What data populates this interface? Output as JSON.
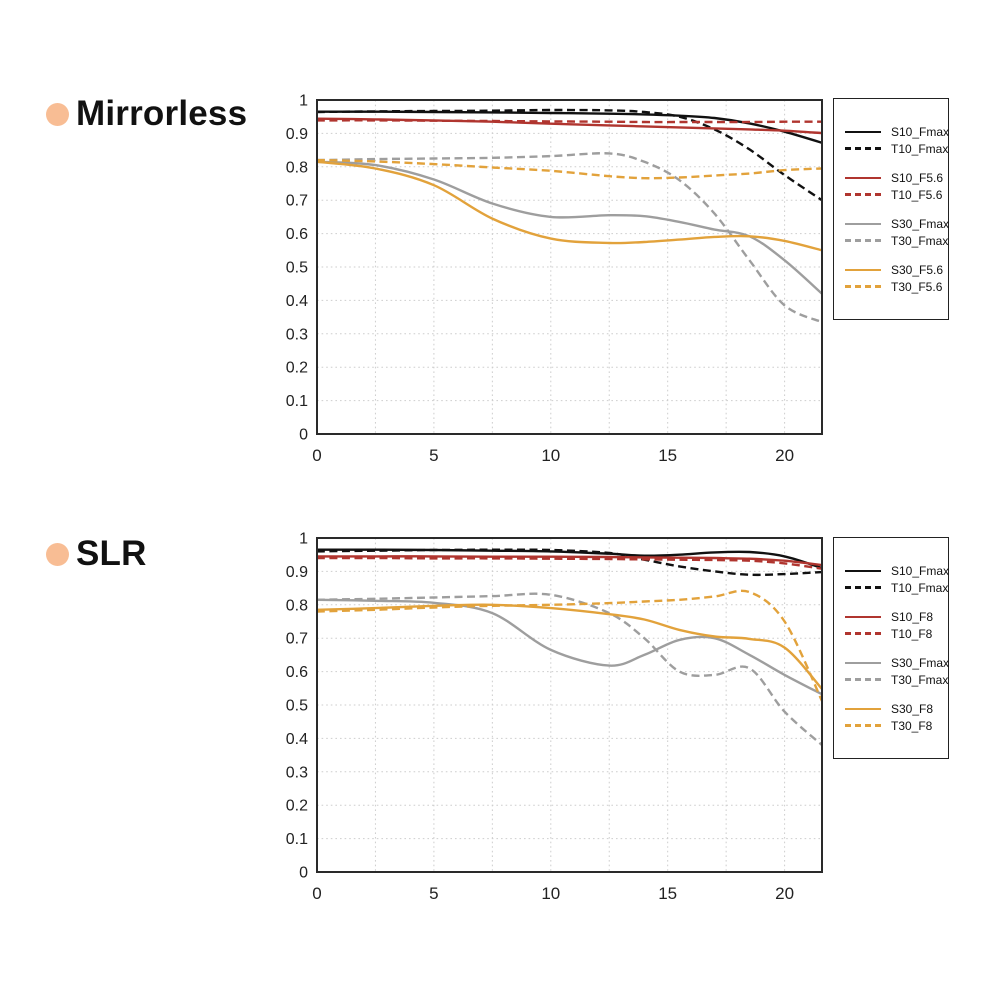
{
  "accent": {
    "bullet_color": "#f8bd94"
  },
  "axis_color": "#2a2a2a",
  "grid_color": "#cdcdcd",
  "chart_data": [
    {
      "type": "line",
      "title": "Mirrorless",
      "xlabel": "",
      "ylabel": "",
      "xlim": [
        0,
        21.6
      ],
      "ylim": [
        0,
        1
      ],
      "xticks": [
        0,
        5,
        10,
        15,
        20
      ],
      "xticklabels": [
        "0",
        "5",
        "10",
        "15",
        "20"
      ],
      "yticks": [
        1,
        0.9,
        0.8,
        0.7,
        0.6,
        0.5,
        0.4,
        0.3,
        0.2,
        0.1,
        0
      ],
      "yticklabels": [
        "1",
        "0.9",
        "0.8",
        "0.7",
        "0.6",
        "0.5",
        "0.4",
        "0.3",
        "0.2",
        "0.1",
        "0"
      ],
      "xgrid": [
        2.5,
        5,
        7.5,
        10,
        12.5,
        15,
        17.5,
        20
      ],
      "ygrid": [
        0.1,
        0.2,
        0.3,
        0.4,
        0.5,
        0.6,
        0.7,
        0.8,
        0.9
      ],
      "grid": true,
      "legend_position": "right",
      "x": [
        0,
        2.5,
        5,
        7.5,
        10,
        12.5,
        14,
        15.5,
        17,
        18.5,
        20,
        21.6
      ],
      "series": [
        {
          "name": "S10_Fmax",
          "color": "#111111",
          "dash": "solid",
          "values": [
            0.965,
            0.965,
            0.964,
            0.963,
            0.961,
            0.959,
            0.957,
            0.953,
            0.946,
            0.93,
            0.905,
            0.872
          ]
        },
        {
          "name": "T10_Fmax",
          "color": "#111111",
          "dash": "dashed",
          "values": [
            0.964,
            0.966,
            0.967,
            0.968,
            0.97,
            0.969,
            0.964,
            0.95,
            0.912,
            0.852,
            0.775,
            0.7
          ]
        },
        {
          "name": "S10_F5.6",
          "color": "#b0352f",
          "dash": "solid",
          "values": [
            0.944,
            0.942,
            0.939,
            0.935,
            0.929,
            0.924,
            0.921,
            0.918,
            0.915,
            0.912,
            0.908,
            0.901
          ]
        },
        {
          "name": "T10_F5.6",
          "color": "#b0352f",
          "dash": "dashed",
          "values": [
            0.939,
            0.939,
            0.938,
            0.937,
            0.936,
            0.935,
            0.934,
            0.934,
            0.934,
            0.934,
            0.935,
            0.935
          ]
        },
        {
          "name": "S30_Fmax",
          "color": "#9e9e9e",
          "dash": "solid",
          "values": [
            0.815,
            0.805,
            0.762,
            0.69,
            0.65,
            0.655,
            0.652,
            0.635,
            0.612,
            0.592,
            0.52,
            0.42
          ]
        },
        {
          "name": "T30_Fmax",
          "color": "#9e9e9e",
          "dash": "dashed",
          "values": [
            0.82,
            0.823,
            0.825,
            0.827,
            0.832,
            0.84,
            0.815,
            0.76,
            0.66,
            0.52,
            0.385,
            0.335
          ]
        },
        {
          "name": "S30_F5.6",
          "color": "#e2a23b",
          "dash": "solid",
          "values": [
            0.815,
            0.795,
            0.745,
            0.645,
            0.585,
            0.572,
            0.575,
            0.582,
            0.59,
            0.592,
            0.578,
            0.55
          ]
        },
        {
          "name": "T30_F5.6",
          "color": "#e2a23b",
          "dash": "dashed",
          "values": [
            0.82,
            0.816,
            0.808,
            0.798,
            0.788,
            0.772,
            0.766,
            0.768,
            0.774,
            0.78,
            0.79,
            0.795
          ]
        }
      ]
    },
    {
      "type": "line",
      "title": "SLR",
      "xlabel": "",
      "ylabel": "",
      "xlim": [
        0,
        21.6
      ],
      "ylim": [
        0,
        1
      ],
      "xticks": [
        0,
        5,
        10,
        15,
        20
      ],
      "xticklabels": [
        "0",
        "5",
        "10",
        "15",
        "20"
      ],
      "yticks": [
        1,
        0.9,
        0.8,
        0.7,
        0.6,
        0.5,
        0.4,
        0.3,
        0.2,
        0.1,
        0
      ],
      "yticklabels": [
        "1",
        "0.9",
        "0.8",
        "0.7",
        "0.6",
        "0.5",
        "0.4",
        "0.3",
        "0.2",
        "0.1",
        "0"
      ],
      "xgrid": [
        2.5,
        5,
        7.5,
        10,
        12.5,
        15,
        17.5,
        20
      ],
      "ygrid": [
        0.1,
        0.2,
        0.3,
        0.4,
        0.5,
        0.6,
        0.7,
        0.8,
        0.9
      ],
      "grid": true,
      "legend_position": "right",
      "x": [
        0,
        2.5,
        5,
        7.5,
        10,
        12.5,
        14,
        15.5,
        17,
        18.5,
        20,
        21.6
      ],
      "series": [
        {
          "name": "S10_Fmax",
          "color": "#111111",
          "dash": "solid",
          "values": [
            0.965,
            0.965,
            0.964,
            0.962,
            0.96,
            0.953,
            0.947,
            0.95,
            0.957,
            0.958,
            0.945,
            0.91
          ]
        },
        {
          "name": "T10_Fmax",
          "color": "#111111",
          "dash": "dashed",
          "values": [
            0.96,
            0.962,
            0.964,
            0.965,
            0.964,
            0.955,
            0.935,
            0.915,
            0.9,
            0.89,
            0.892,
            0.898
          ]
        },
        {
          "name": "S10_F8",
          "color": "#b0352f",
          "dash": "solid",
          "values": [
            0.945,
            0.945,
            0.945,
            0.944,
            0.944,
            0.943,
            0.942,
            0.941,
            0.94,
            0.938,
            0.932,
            0.919
          ]
        },
        {
          "name": "T10_F8",
          "color": "#b0352f",
          "dash": "dashed",
          "values": [
            0.94,
            0.94,
            0.939,
            0.939,
            0.938,
            0.937,
            0.936,
            0.935,
            0.934,
            0.932,
            0.924,
            0.908
          ]
        },
        {
          "name": "S30_Fmax",
          "color": "#9e9e9e",
          "dash": "solid",
          "values": [
            0.815,
            0.812,
            0.806,
            0.775,
            0.665,
            0.618,
            0.65,
            0.695,
            0.7,
            0.65,
            0.59,
            0.532
          ]
        },
        {
          "name": "T30_Fmax",
          "color": "#9e9e9e",
          "dash": "dashed",
          "values": [
            0.815,
            0.818,
            0.822,
            0.826,
            0.83,
            0.775,
            0.7,
            0.6,
            0.59,
            0.61,
            0.48,
            0.38
          ]
        },
        {
          "name": "S30_F8",
          "color": "#e2a23b",
          "dash": "solid",
          "values": [
            0.785,
            0.79,
            0.797,
            0.8,
            0.79,
            0.772,
            0.756,
            0.725,
            0.705,
            0.698,
            0.672,
            0.548
          ]
        },
        {
          "name": "T30_F8",
          "color": "#e2a23b",
          "dash": "dashed",
          "values": [
            0.78,
            0.785,
            0.792,
            0.797,
            0.8,
            0.805,
            0.81,
            0.815,
            0.825,
            0.838,
            0.75,
            0.512
          ]
        }
      ]
    }
  ]
}
